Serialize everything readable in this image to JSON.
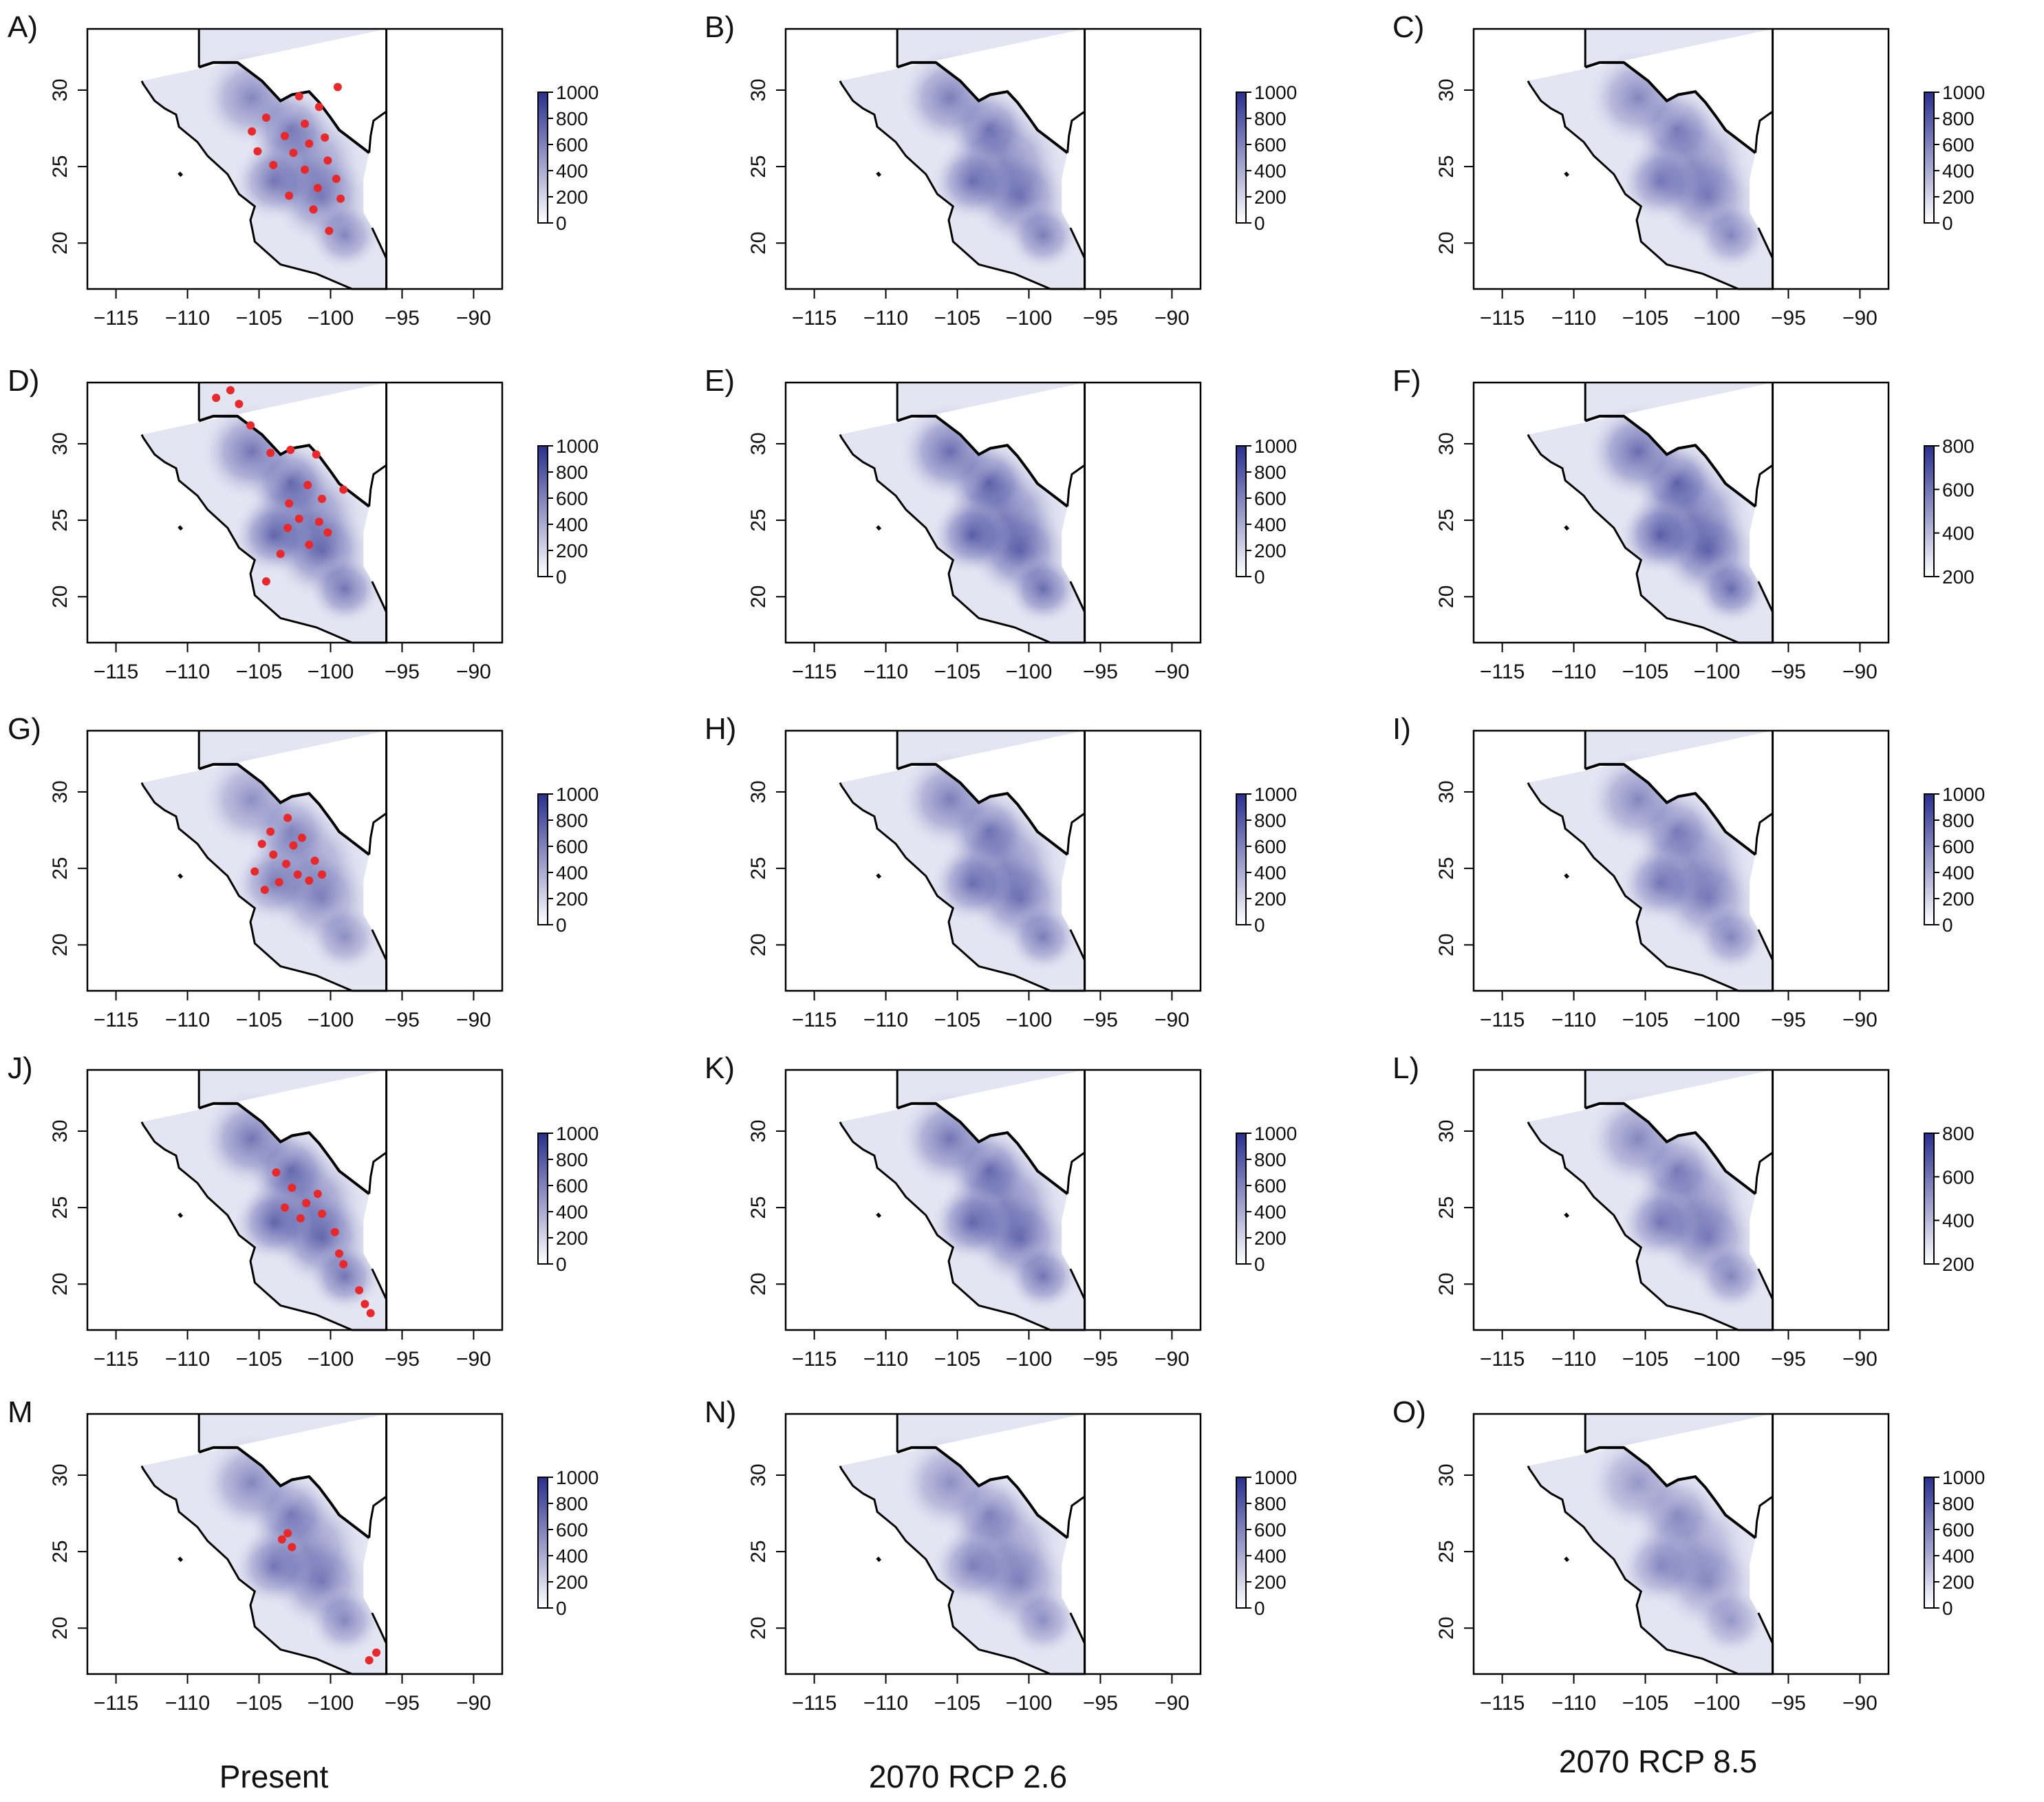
{
  "figure": {
    "column_titles": [
      "Present",
      "2070 RCP 2.6",
      "2070 RCP 8.5"
    ]
  },
  "colors": {
    "low": "#ffffff",
    "high": "#2b2f8e",
    "occurrence_points": "#e8282b",
    "border": "#000000"
  },
  "panels": [
    {
      "label": "A)",
      "column": "Present",
      "legend_ticks": [
        "1000",
        "800",
        "600",
        "400",
        "200",
        "0"
      ],
      "intensity": 0.55,
      "has_points": true
    },
    {
      "label": "B)",
      "column": "2070 RCP 2.6",
      "legend_ticks": [
        "1000",
        "800",
        "600",
        "400",
        "200",
        "0"
      ],
      "intensity": 0.6,
      "has_points": false
    },
    {
      "label": "C)",
      "column": "2070 RCP 8.5",
      "legend_ticks": [
        "1000",
        "800",
        "600",
        "400",
        "200",
        "0"
      ],
      "intensity": 0.55,
      "has_points": false
    },
    {
      "label": "D)",
      "column": "Present",
      "legend_ticks": [
        "1000",
        "800",
        "600",
        "400",
        "200",
        "0"
      ],
      "intensity": 0.65,
      "has_points": true
    },
    {
      "label": "E)",
      "column": "2070 RCP 2.6",
      "legend_ticks": [
        "1000",
        "800",
        "600",
        "400",
        "200",
        "0"
      ],
      "intensity": 0.7,
      "has_points": false
    },
    {
      "label": "F)",
      "column": "2070 RCP 8.5",
      "legend_ticks": [
        "800",
        "600",
        "400",
        "200"
      ],
      "intensity": 0.7,
      "has_points": false
    },
    {
      "label": "G)",
      "column": "Present",
      "legend_ticks": [
        "1000",
        "800",
        "600",
        "400",
        "200",
        "0"
      ],
      "intensity": 0.5,
      "has_points": true
    },
    {
      "label": "H)",
      "column": "2070 RCP 2.6",
      "legend_ticks": [
        "1000",
        "800",
        "600",
        "400",
        "200",
        "0"
      ],
      "intensity": 0.6,
      "has_points": false
    },
    {
      "label": "I)",
      "column": "2070 RCP 8.5",
      "legend_ticks": [
        "1000",
        "800",
        "600",
        "400",
        "200",
        "0"
      ],
      "intensity": 0.55,
      "has_points": false
    },
    {
      "label": "J)",
      "column": "Present",
      "legend_ticks": [
        "1000",
        "800",
        "600",
        "400",
        "200",
        "0"
      ],
      "intensity": 0.65,
      "has_points": true
    },
    {
      "label": "K)",
      "column": "2070 RCP 2.6",
      "legend_ticks": [
        "1000",
        "800",
        "600",
        "400",
        "200",
        "0"
      ],
      "intensity": 0.65,
      "has_points": false
    },
    {
      "label": "L)",
      "column": "2070 RCP 8.5",
      "legend_ticks": [
        "800",
        "600",
        "400",
        "200"
      ],
      "intensity": 0.55,
      "has_points": false
    },
    {
      "label": "M",
      "column": "Present",
      "legend_ticks": [
        "1000",
        "800",
        "600",
        "400",
        "200",
        "0"
      ],
      "intensity": 0.55,
      "has_points": true
    },
    {
      "label": "N)",
      "column": "2070 RCP 2.6",
      "legend_ticks": [
        "1000",
        "800",
        "600",
        "400",
        "200",
        "0"
      ],
      "intensity": 0.5,
      "has_points": false
    },
    {
      "label": "O)",
      "column": "2070 RCP 8.5",
      "legend_ticks": [
        "1000",
        "800",
        "600",
        "400",
        "200",
        "0"
      ],
      "intensity": 0.45,
      "has_points": false
    }
  ],
  "chart_data": {
    "type": "heatmap",
    "title": "",
    "x_ticks": [
      "−115",
      "−110",
      "−105",
      "−100",
      "−95",
      "−90"
    ],
    "y_ticks": [
      "20",
      "25",
      "30"
    ],
    "xlim": [
      -117,
      -88
    ],
    "ylim": [
      17,
      34
    ],
    "legend_range": [
      0,
      1000
    ],
    "grid": false,
    "legend_position": "right of each panel"
  }
}
